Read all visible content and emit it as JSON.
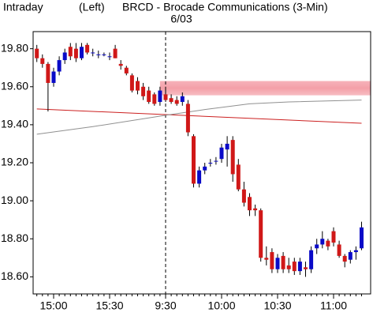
{
  "chart_data": {
    "type": "candlestick",
    "header": [
      "Intraday",
      "(Left)",
      "BRCD - Brocade Communications (3-Min)"
    ],
    "date_label": {
      "text": "6/03",
      "index": 23
    },
    "categories": [
      null,
      null,
      null,
      "15:00",
      null,
      null,
      null,
      null,
      null,
      null,
      null,
      null,
      null,
      "15:30",
      null,
      null,
      null,
      null,
      null,
      null,
      null,
      null,
      null,
      "9:30",
      null,
      null,
      null,
      null,
      null,
      null,
      null,
      null,
      null,
      "10:00",
      null,
      null,
      null,
      null,
      null,
      null,
      null,
      null,
      null,
      "10:30",
      null,
      null,
      null,
      null,
      null,
      null,
      null,
      null,
      null,
      "11:00",
      null,
      null,
      null,
      null,
      null
    ],
    "open": [
      19.8,
      19.75,
      19.72,
      19.62,
      19.68,
      19.74,
      19.81,
      19.8,
      19.75,
      19.82,
      19.78,
      19.77,
      19.77,
      19.76,
      19.8,
      19.72,
      19.7,
      19.66,
      19.63,
      19.6,
      19.58,
      19.56,
      19.52,
      19.56,
      19.54,
      19.53,
      19.52,
      19.51,
      19.34,
      19.09,
      19.16,
      19.2,
      19.21,
      19.22,
      19.27,
      19.32,
      19.19,
      19.06,
      19.02,
      18.96,
      18.95,
      18.7,
      18.73,
      18.64,
      18.71,
      18.66,
      18.68,
      18.63,
      18.65,
      18.64,
      18.75,
      18.77,
      18.79,
      18.84,
      18.77,
      18.71,
      18.69,
      18.73,
      18.75
    ],
    "high": [
      19.82,
      19.77,
      19.73,
      19.7,
      19.76,
      19.8,
      19.83,
      19.83,
      19.83,
      19.83,
      19.8,
      19.79,
      19.78,
      19.78,
      19.82,
      19.74,
      19.71,
      19.67,
      19.65,
      19.62,
      19.6,
      19.57,
      19.6,
      19.6,
      19.56,
      19.55,
      19.57,
      19.53,
      19.35,
      19.18,
      19.2,
      19.22,
      19.23,
      19.3,
      19.34,
      19.34,
      19.22,
      19.1,
      19.04,
      18.98,
      18.96,
      18.76,
      18.75,
      18.72,
      18.73,
      18.7,
      18.7,
      18.7,
      18.68,
      18.76,
      18.8,
      18.84,
      18.8,
      18.86,
      18.79,
      18.72,
      18.74,
      18.76,
      18.89
    ],
    "low": [
      19.73,
      19.7,
      19.47,
      19.6,
      19.66,
      19.72,
      19.74,
      19.73,
      19.74,
      19.77,
      19.76,
      19.75,
      19.76,
      19.74,
      19.75,
      19.69,
      19.66,
      19.57,
      19.56,
      19.53,
      19.51,
      19.5,
      19.5,
      19.52,
      19.51,
      19.5,
      19.5,
      19.34,
      19.07,
      19.07,
      19.14,
      19.18,
      19.19,
      19.2,
      19.18,
      19.1,
      19.05,
      18.97,
      18.92,
      18.92,
      18.68,
      18.66,
      18.62,
      18.62,
      18.62,
      18.62,
      18.61,
      18.61,
      18.6,
      18.62,
      18.72,
      18.75,
      18.74,
      18.76,
      18.7,
      18.65,
      18.67,
      18.69,
      18.74
    ],
    "close": [
      19.75,
      19.72,
      19.62,
      19.68,
      19.74,
      19.78,
      19.76,
      19.75,
      19.81,
      19.78,
      19.78,
      19.77,
      19.77,
      19.76,
      19.75,
      19.71,
      19.67,
      19.58,
      19.58,
      19.55,
      19.52,
      19.51,
      19.58,
      19.53,
      19.52,
      19.51,
      19.55,
      19.36,
      19.09,
      19.16,
      19.18,
      19.2,
      19.21,
      19.28,
      19.3,
      19.14,
      19.06,
      18.99,
      18.95,
      18.95,
      18.7,
      18.69,
      18.64,
      18.7,
      18.64,
      18.64,
      18.63,
      18.68,
      18.64,
      18.74,
      18.77,
      18.8,
      18.76,
      18.78,
      18.71,
      18.68,
      18.73,
      18.74,
      18.86
    ],
    "up_color": "#0a0ac8",
    "down_color": "#d01818",
    "overlays": [
      {
        "color": "#cc2020",
        "x": [
          0,
          58
        ],
        "values": [
          19.483,
          19.408
        ]
      },
      {
        "color": "#909090",
        "x": [
          0,
          10,
          23,
          30,
          38,
          45,
          58
        ],
        "values": [
          19.35,
          19.39,
          19.45,
          19.48,
          19.51,
          19.52,
          19.53
        ]
      }
    ],
    "band": {
      "range": [
        19.555,
        19.63
      ],
      "start": 22,
      "color": "#f4a0a8"
    },
    "ylim": [
      18.51,
      19.89
    ],
    "yticks": [
      {
        "value": 18.6,
        "label": "18.60"
      },
      {
        "value": 18.8,
        "label": "18.80"
      },
      {
        "value": 19.0,
        "label": "19.00"
      },
      {
        "value": 19.2,
        "label": "19.20"
      },
      {
        "value": 19.4,
        "label": "19.40"
      },
      {
        "value": 19.6,
        "label": "19.60"
      },
      {
        "value": 19.8,
        "label": "19.80"
      }
    ]
  }
}
